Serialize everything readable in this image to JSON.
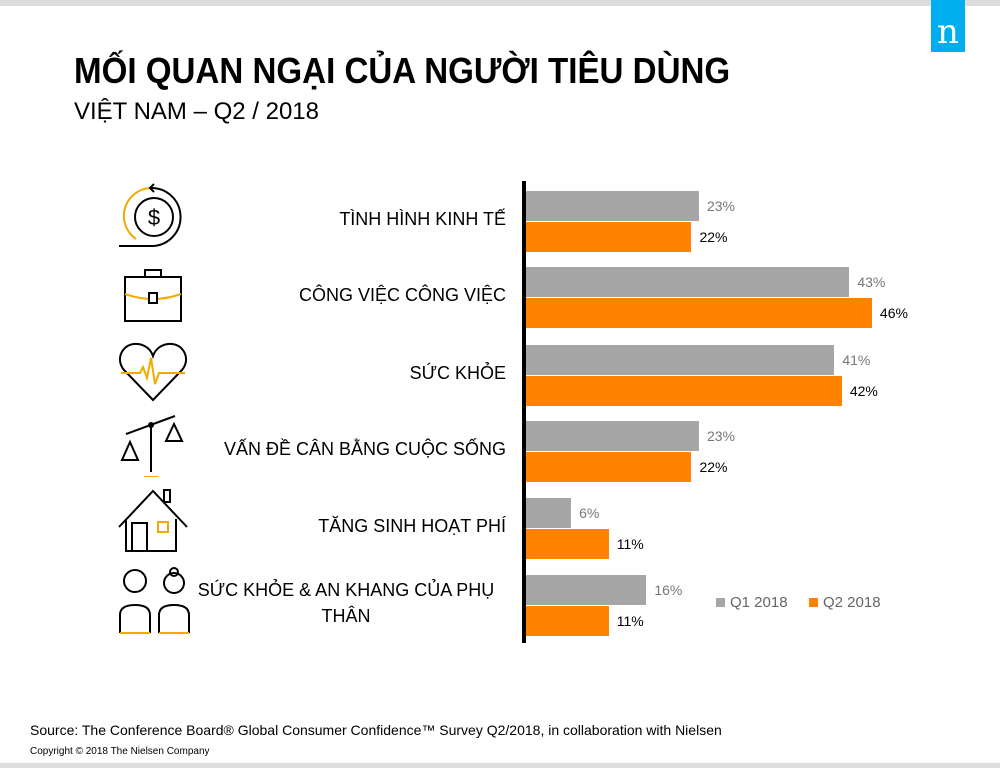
{
  "logo": "n",
  "title": "MỐI QUAN NGẠI CỦA NGƯỜI TIÊU DÙNG",
  "subtitle": "VIỆT NAM – Q2 / 2018",
  "chart_data": {
    "type": "bar",
    "orientation": "horizontal",
    "categories": [
      "TÌNH HÌNH KINH TẾ",
      "CÔNG VIỆC CÔNG VIỆC",
      "SỨC KHỎE",
      "VẤN ĐỀ CÂN BẰNG CUỘC SỐNG",
      "TĂNG SINH HOẠT PHÍ",
      "SỨC KHỎE & AN KHANG CỦA PHỤ THÂN"
    ],
    "series": [
      {
        "name": "Q1 2018",
        "color": "#a6a6a6",
        "values": [
          23,
          43,
          41,
          23,
          6,
          16
        ],
        "labels": [
          "23%",
          "43%",
          "41%",
          "23%",
          "6%",
          "16%"
        ]
      },
      {
        "name": "Q2 2018",
        "color": "#ff8200",
        "values": [
          22,
          46,
          42,
          22,
          11,
          11
        ],
        "labels": [
          "22%",
          "46%",
          "42%",
          "22%",
          "11%",
          "11%"
        ]
      }
    ],
    "legend": "bottom-right",
    "grid": false
  },
  "icons": [
    "dollar-cycle-icon",
    "briefcase-icon",
    "heart-pulse-icon",
    "balance-scale-icon",
    "house-icon",
    "elderly-parents-icon"
  ],
  "footer": {
    "source": "Source: The Conference Board® Global Consumer Confidence™ Survey Q2/2018, in collaboration with Nielsen",
    "copyright": "Copyright © 2018 The Nielsen Company"
  }
}
